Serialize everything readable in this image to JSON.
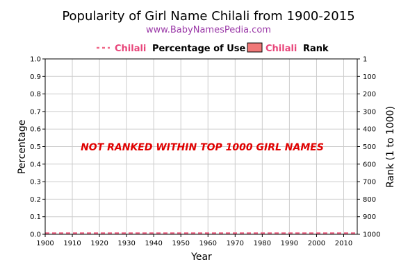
{
  "chart_data": {
    "type": "line",
    "title": "Popularity of Girl Name Chilali from 1900-2015",
    "subtitle": "www.BabyNamesPedia.com",
    "xlabel": "Year",
    "ylabel": "Percentage",
    "ylabel_right": "Rank (1 to 1000)",
    "xlim": [
      1900,
      2015
    ],
    "ylim": [
      0,
      1.0
    ],
    "ylim_right": [
      1,
      1000
    ],
    "x_ticks": [
      "1900",
      "1910",
      "1920",
      "1930",
      "1940",
      "1950",
      "1960",
      "1970",
      "1980",
      "1990",
      "2000",
      "2010"
    ],
    "y_ticks": [
      "0.0",
      "0.1",
      "0.2",
      "0.3",
      "0.4",
      "0.5",
      "0.6",
      "0.7",
      "0.8",
      "0.9",
      "1.0"
    ],
    "y_ticks_right": [
      "1000",
      "900",
      "800",
      "700",
      "600",
      "500",
      "400",
      "300",
      "200",
      "100",
      "1"
    ],
    "grid": true,
    "legend_position": "top",
    "legend": [
      {
        "name": "Chilali",
        "suffix": "Percentage of Use",
        "style": "dashed-line"
      },
      {
        "name": "Chilali",
        "suffix": "Rank",
        "style": "box"
      }
    ],
    "series": [
      {
        "name": "Chilali Percentage of Use",
        "x": [
          1900,
          2015
        ],
        "values": [
          0,
          0
        ]
      }
    ],
    "annotation": "NOT RANKED WITHIN TOP 1000 GIRL NAMES",
    "colors": {
      "percentage_line": "#f06a8a",
      "rank_box_fill": "#f07878",
      "name_highlight": "#e8457a",
      "annotation": "#e00000",
      "subtitle": "#9b3aa8",
      "grid": "#cccccc"
    }
  }
}
